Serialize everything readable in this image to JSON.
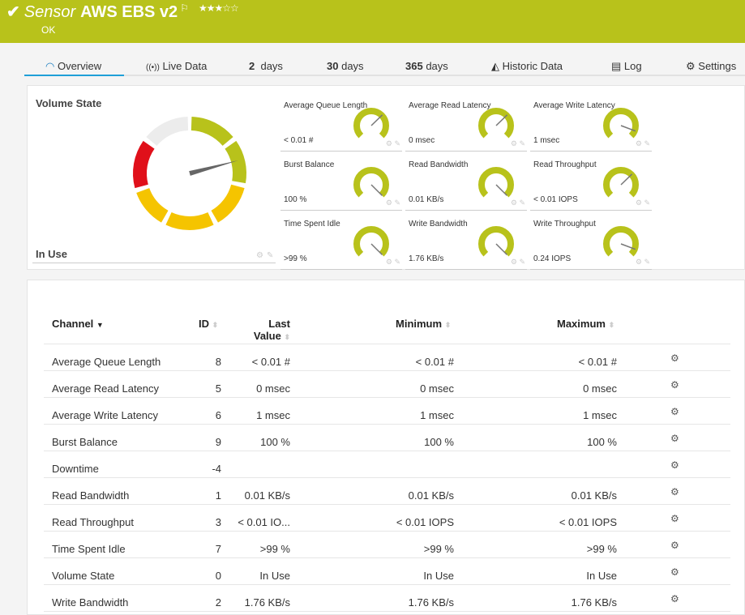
{
  "header": {
    "kind": "Sensor",
    "name": "AWS EBS v2",
    "status": "OK",
    "priority_stars": 3,
    "stars_total": 5,
    "color": "#b8c21b"
  },
  "tabs": [
    {
      "label": "Overview",
      "icon": "gauge-icon",
      "active": true
    },
    {
      "label": "Live Data",
      "icon": "broadcast-icon"
    },
    {
      "num": "2",
      "label": "days"
    },
    {
      "num": "30",
      "label": "days"
    },
    {
      "num": "365",
      "label": "days"
    },
    {
      "label": "Historic Data",
      "icon": "area-chart-icon"
    },
    {
      "label": "Log",
      "icon": "list-icon"
    },
    {
      "label": "Settings",
      "icon": "gear-icon"
    }
  ],
  "volume_state": {
    "title": "Volume State",
    "value": "In Use",
    "colors": {
      "ok": "#b8c21b",
      "warning": "#f5c400",
      "error": "#e0101a",
      "unknown": "#ececec"
    }
  },
  "gauges": [
    {
      "title": "Average Queue Length",
      "value": "< 0.01 #",
      "level": 0.67
    },
    {
      "title": "Average Read Latency",
      "value": "0 msec",
      "level": 0.67
    },
    {
      "title": "Average Write Latency",
      "value": "1 msec",
      "level": 0.91
    },
    {
      "title": "Burst Balance",
      "value": "100 %",
      "level": 1.0
    },
    {
      "title": "Read Bandwidth",
      "value": "0.01 KB/s",
      "level": 1.0
    },
    {
      "title": "Read Throughput",
      "value": "< 0.01 IOPS",
      "level": 0.67
    },
    {
      "title": "Time Spent Idle",
      "value": ">99 %",
      "level": 1.0
    },
    {
      "title": "Write Bandwidth",
      "value": "1.76 KB/s",
      "level": 1.0
    },
    {
      "title": "Write Throughput",
      "value": "0.24 IOPS",
      "level": 0.91
    }
  ],
  "table": {
    "headers": {
      "channel": "Channel",
      "id": "ID",
      "last1": "Last",
      "last2": "Value",
      "minimum": "Minimum",
      "maximum": "Maximum"
    },
    "rows": [
      {
        "channel": "Average Queue Length",
        "id": "8",
        "last": "< 0.01 #",
        "min": "< 0.01 #",
        "max": "< 0.01 #"
      },
      {
        "channel": "Average Read Latency",
        "id": "5",
        "last": "0 msec",
        "min": "0 msec",
        "max": "0 msec"
      },
      {
        "channel": "Average Write Latency",
        "id": "6",
        "last": "1 msec",
        "min": "1 msec",
        "max": "1 msec"
      },
      {
        "channel": "Burst Balance",
        "id": "9",
        "last": "100 %",
        "min": "100 %",
        "max": "100 %"
      },
      {
        "channel": "Downtime",
        "id": "-4",
        "last": "",
        "min": "",
        "max": ""
      },
      {
        "channel": "Read Bandwidth",
        "id": "1",
        "last": "0.01 KB/s",
        "min": "0.01 KB/s",
        "max": "0.01 KB/s"
      },
      {
        "channel": "Read Throughput",
        "id": "3",
        "last": "< 0.01 IO...",
        "min": "< 0.01 IOPS",
        "max": "< 0.01 IOPS"
      },
      {
        "channel": "Time Spent Idle",
        "id": "7",
        "last": ">99 %",
        "min": ">99 %",
        "max": ">99 %"
      },
      {
        "channel": "Volume State",
        "id": "0",
        "last": "In Use",
        "min": "In Use",
        "max": "In Use"
      },
      {
        "channel": "Write Bandwidth",
        "id": "2",
        "last": "1.76 KB/s",
        "min": "1.76 KB/s",
        "max": "1.76 KB/s"
      }
    ]
  }
}
